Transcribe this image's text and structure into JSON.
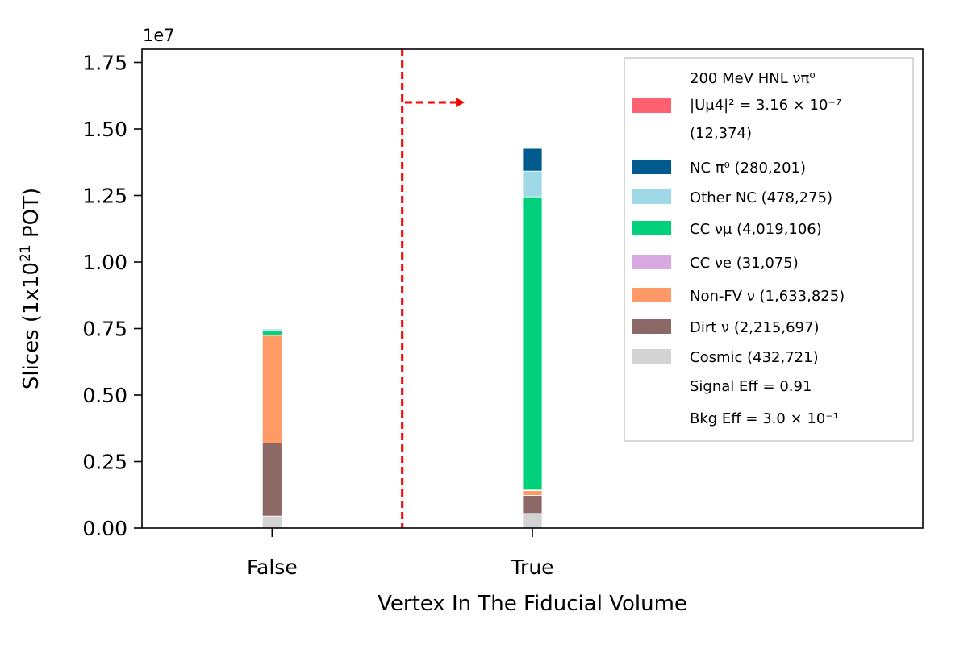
{
  "chart_data": {
    "type": "bar",
    "stacked": true,
    "xlabel": "Vertex In The Fiducial Volume",
    "ylabel_parts": {
      "main": "Slices (1x10",
      "sup": "21",
      "end": " POT)"
    },
    "y_multiplier_text": "1e7",
    "categories": [
      "False",
      "True"
    ],
    "ylim": [
      0,
      1.8
    ],
    "yticks": [
      "0.00",
      "0.25",
      "0.50",
      "0.75",
      "1.00",
      "1.25",
      "1.50",
      "1.75"
    ],
    "ytick_values": [
      0,
      0.25,
      0.5,
      0.75,
      1.0,
      1.25,
      1.5,
      1.75
    ],
    "xlim": [
      -0.5,
      2.5
    ],
    "category_positions": [
      0,
      1
    ],
    "cut_line_x": 0.5,
    "cut_arrow": {
      "x_start": 0.51,
      "x_end": 0.74,
      "y": 1.6
    },
    "series": [
      {
        "name": "Cosmic (432,721)",
        "color": "#d3d3d3",
        "values": [
          0.045,
          0.055
        ]
      },
      {
        "name": "Dirt ν (2,215,697)",
        "color": "#8c6966",
        "values": [
          0.275,
          0.068
        ]
      },
      {
        "name": "Non-FV ν (1,633,825)",
        "color": "#ff9966",
        "values": [
          0.405,
          0.018
        ]
      },
      {
        "name": "CC νe (31,075)",
        "color": "#d8a8e0",
        "values": [
          0.001,
          0.002
        ]
      },
      {
        "name": "CC νμ (4,019,106)",
        "color": "#00d17a",
        "values": [
          0.015,
          1.102
        ]
      },
      {
        "name": "Other NC (478,275)",
        "color": "#9fd9e8",
        "values": [
          0.004,
          0.097
        ]
      },
      {
        "name": "NC π0 (280,201)",
        "color": "#005a8e",
        "values": [
          0.003,
          0.085
        ]
      },
      {
        "name": "200 MeV HNL νπ0 |Uμ4|² = 3.16×10⁻⁷ (12,374)",
        "color": "#ff6070",
        "values": [
          0.0,
          0.0
        ]
      }
    ],
    "legend": {
      "placement": "upper right",
      "hnl_lines": [
        "200 MeV HNL νπ⁰",
        "|Uμ4|² = 3.16 × 10⁻⁷",
        " (12,374)"
      ],
      "entries": [
        {
          "label": "NC π⁰ (280,201)",
          "color": "#005a8e"
        },
        {
          "label": "Other NC (478,275)",
          "color": "#9fd9e8"
        },
        {
          "label": "CC νμ (4,019,106)",
          "color": "#00d17a"
        },
        {
          "label": "CC νe (31,075)",
          "color": "#d8a8e0"
        },
        {
          "label": "Non-FV ν (1,633,825)",
          "color": "#ff9966"
        },
        {
          "label": "Dirt ν (2,215,697)",
          "color": "#8c6966"
        },
        {
          "label": "Cosmic (432,721)",
          "color": "#d3d3d3"
        }
      ],
      "hnl_color": "#ff6070",
      "signal_eff": "Signal Eff = 0.91",
      "bkg_eff": "Bkg Eff = 3.0 × 10⁻¹"
    }
  }
}
